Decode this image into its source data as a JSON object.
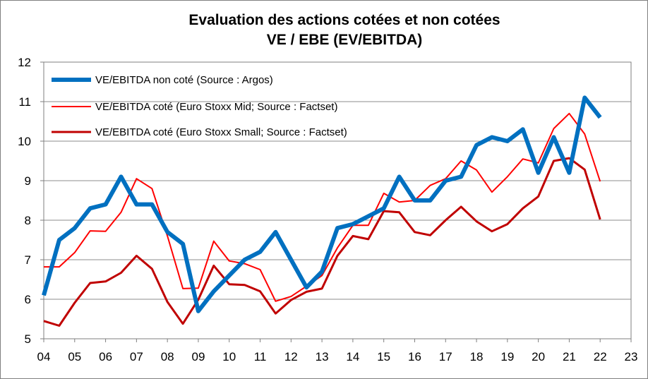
{
  "chart_data": {
    "type": "line",
    "title": "Evaluation des actions cotées et non cotées",
    "subtitle": "VE / EBE (EV/EBITDA)",
    "xlabel": "",
    "ylabel": "",
    "x_tick_labels": [
      "04",
      "05",
      "06",
      "07",
      "08",
      "09",
      "10",
      "11",
      "12",
      "13",
      "14",
      "15",
      "16",
      "17",
      "18",
      "19",
      "20",
      "21",
      "22",
      "23"
    ],
    "y_tick_labels": [
      "5",
      "6",
      "7",
      "8",
      "9",
      "10",
      "11",
      "12"
    ],
    "xlim": [
      2004,
      2023
    ],
    "ylim": [
      5,
      12
    ],
    "grid": "horizontal",
    "legend_position": "top-left",
    "x": [
      2004.0,
      2004.5,
      2005.0,
      2005.5,
      2006.0,
      2006.5,
      2007.0,
      2007.5,
      2008.0,
      2008.5,
      2009.0,
      2009.5,
      2010.0,
      2010.5,
      2011.0,
      2011.5,
      2012.0,
      2012.5,
      2013.0,
      2013.5,
      2014.0,
      2014.5,
      2015.0,
      2015.5,
      2016.0,
      2016.5,
      2017.0,
      2017.5,
      2018.0,
      2018.5,
      2019.0,
      2019.5,
      2020.0,
      2020.5,
      2021.0,
      2021.5,
      2022.0
    ],
    "series": [
      {
        "name": "VE/EBITDA non coté (Source : Argos)",
        "color": "#0070c0",
        "width": "thick",
        "values": [
          6.1,
          7.5,
          7.8,
          8.3,
          8.4,
          9.1,
          8.4,
          8.4,
          7.7,
          7.4,
          5.7,
          6.2,
          6.6,
          7.0,
          7.2,
          7.7,
          7.0,
          6.3,
          6.7,
          7.8,
          7.9,
          8.1,
          8.3,
          9.1,
          8.5,
          8.5,
          9.0,
          9.1,
          9.9,
          10.1,
          10.0,
          10.3,
          9.2,
          10.1,
          9.2,
          11.1,
          10.6
        ]
      },
      {
        "name": "VE/EBITDA coté (Euro Stoxx Mid; Source : Factset)",
        "color": "#ff0000",
        "width": "thin",
        "values": [
          6.82,
          6.82,
          7.18,
          7.73,
          7.72,
          8.2,
          9.05,
          8.8,
          7.6,
          6.27,
          6.28,
          7.47,
          6.97,
          6.9,
          6.75,
          5.95,
          6.07,
          6.33,
          6.6,
          7.3,
          7.87,
          7.87,
          8.68,
          8.46,
          8.5,
          8.88,
          9.05,
          9.5,
          9.27,
          8.71,
          9.1,
          9.55,
          9.45,
          10.32,
          10.7,
          10.18,
          8.98
        ]
      },
      {
        "name": "VE/EBITDA coté (Euro Stoxx Small; Source : Factset)",
        "color": "#c00000",
        "width": "medium",
        "values": [
          5.45,
          5.33,
          5.91,
          6.41,
          6.45,
          6.67,
          7.1,
          6.77,
          5.93,
          5.38,
          5.99,
          6.85,
          6.38,
          6.36,
          6.2,
          5.64,
          5.98,
          6.19,
          6.27,
          7.1,
          7.6,
          7.52,
          8.23,
          8.2,
          7.7,
          7.62,
          8.0,
          8.34,
          7.97,
          7.72,
          7.9,
          8.3,
          8.6,
          9.5,
          9.57,
          9.28,
          8.02
        ]
      }
    ]
  }
}
